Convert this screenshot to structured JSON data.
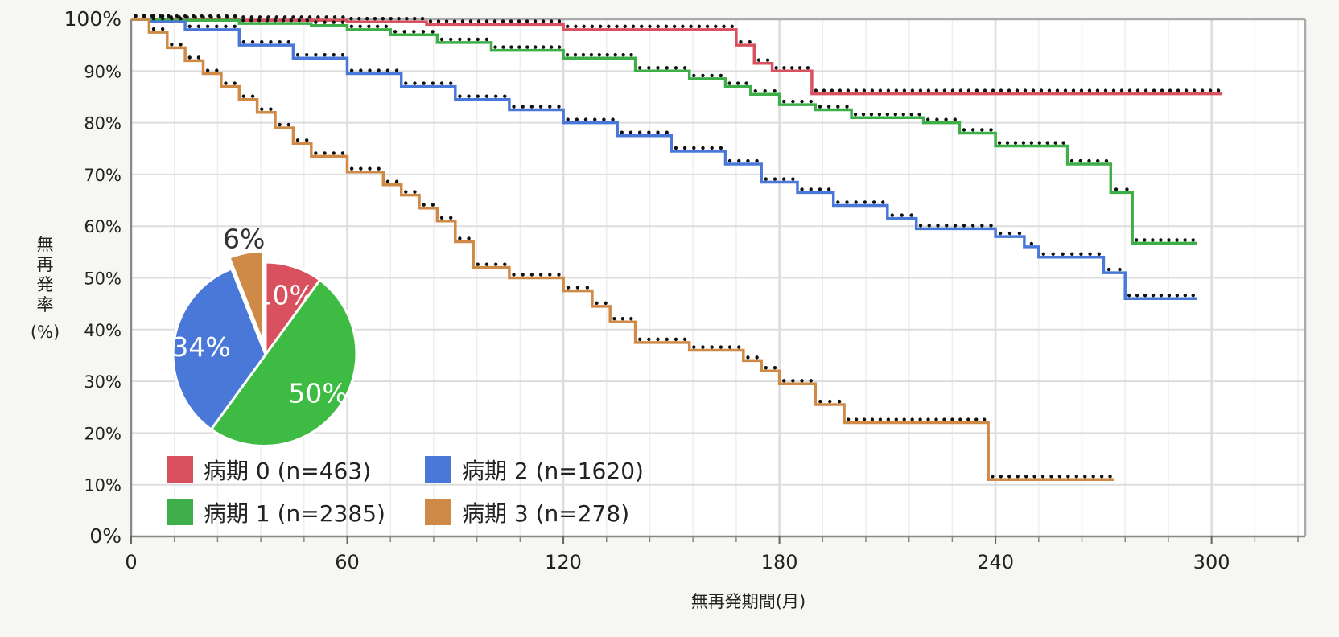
{
  "chart_data": [
    {
      "type": "line",
      "title": "",
      "xlabel": "無再発期間(月)",
      "ylabel": [
        "無",
        "再",
        "発",
        "率",
        "(%)"
      ],
      "xlim": [
        0,
        326
      ],
      "ylim": [
        0,
        100
      ],
      "x_ticks": [
        0,
        60,
        120,
        180,
        240,
        300
      ],
      "y_ticks": [
        {
          "value": 0,
          "label": "0%"
        },
        {
          "value": 10,
          "label": "10%"
        },
        {
          "value": 20,
          "label": "20%"
        },
        {
          "value": 30,
          "label": "30%"
        },
        {
          "value": 40,
          "label": "40%"
        },
        {
          "value": 50,
          "label": "50%"
        },
        {
          "value": 60,
          "label": "60%"
        },
        {
          "value": 70,
          "label": "70%"
        },
        {
          "value": 80,
          "label": "80%"
        },
        {
          "value": 90,
          "label": "90%"
        },
        {
          "value": 100,
          "label": "100%"
        }
      ],
      "grid": true,
      "step": true,
      "series": [
        {
          "name": "病期 0 (n=463)",
          "color": "#d9505e",
          "x": [
            0,
            30,
            60,
            82,
            120,
            168,
            173,
            178,
            189,
            303
          ],
          "y": [
            100,
            99.8,
            99.5,
            99,
            98,
            95,
            91.5,
            90,
            85.6,
            85.6
          ]
        },
        {
          "name": "病期 1 (n=2385)",
          "color": "#3dae48",
          "x": [
            0,
            10,
            30,
            50,
            60,
            72,
            85,
            100,
            120,
            140,
            155,
            165,
            172,
            180,
            190,
            200,
            220,
            230,
            240,
            260,
            272,
            278,
            296
          ],
          "y": [
            100,
            99.8,
            99.2,
            98.8,
            98,
            97,
            95.5,
            94,
            92.5,
            90,
            88.5,
            87,
            85.5,
            83.5,
            82.5,
            81,
            80,
            78,
            75.5,
            72,
            66.5,
            56.7,
            56.7
          ]
        },
        {
          "name": "病期 2 (n=1620)",
          "color": "#4a78d8",
          "x": [
            0,
            5,
            15,
            30,
            45,
            60,
            75,
            90,
            105,
            120,
            135,
            150,
            165,
            175,
            185,
            195,
            210,
            218,
            230,
            240,
            248,
            252,
            260,
            270,
            276,
            296
          ],
          "y": [
            100,
            99.5,
            98,
            95,
            92.5,
            89.5,
            87,
            84.5,
            82.5,
            80,
            77.5,
            74.5,
            72,
            68.5,
            66.5,
            64,
            61.5,
            59.5,
            59.5,
            58,
            56,
            54,
            54,
            51,
            46,
            46
          ]
        },
        {
          "name": "病期 3 (n=278)",
          "color": "#d08a48",
          "x": [
            0,
            5,
            10,
            15,
            20,
            25,
            30,
            35,
            40,
            45,
            50,
            60,
            70,
            75,
            80,
            85,
            90,
            95,
            105,
            120,
            128,
            133,
            140,
            155,
            170,
            175,
            180,
            190,
            198,
            238,
            273
          ],
          "y": [
            100,
            97.5,
            94.5,
            92,
            89.5,
            87,
            84.5,
            82,
            79,
            76,
            73.5,
            70.5,
            68,
            66,
            63.5,
            61,
            57,
            52,
            50,
            47.5,
            44.5,
            41.5,
            37.5,
            36,
            34,
            32,
            29.5,
            25.5,
            22,
            11,
            11
          ]
        }
      ],
      "legend": [
        {
          "label": "病期 0 (n=463)",
          "color": "#d9505e"
        },
        {
          "label": "病期 2 (n=1620)",
          "color": "#4a78d8"
        },
        {
          "label": "病期 1 (n=2385)",
          "color": "#3dae48"
        },
        {
          "label": "病期 3 (n=278)",
          "color": "#d08a48"
        }
      ],
      "legend_position": "bottom-left"
    },
    {
      "type": "pie",
      "title": "",
      "slices": [
        {
          "name": "病期 0",
          "value": 10,
          "label": "10%",
          "color": "#d9505e"
        },
        {
          "name": "病期 1",
          "value": 50,
          "label": "50%",
          "color": "#3dbb43"
        },
        {
          "name": "病期 2",
          "value": 34,
          "label": "34%",
          "color": "#4a78d8"
        },
        {
          "name": "病期 3",
          "value": 6,
          "label": "6%",
          "color": "#d08a48"
        }
      ],
      "position": "inset-left"
    }
  ]
}
